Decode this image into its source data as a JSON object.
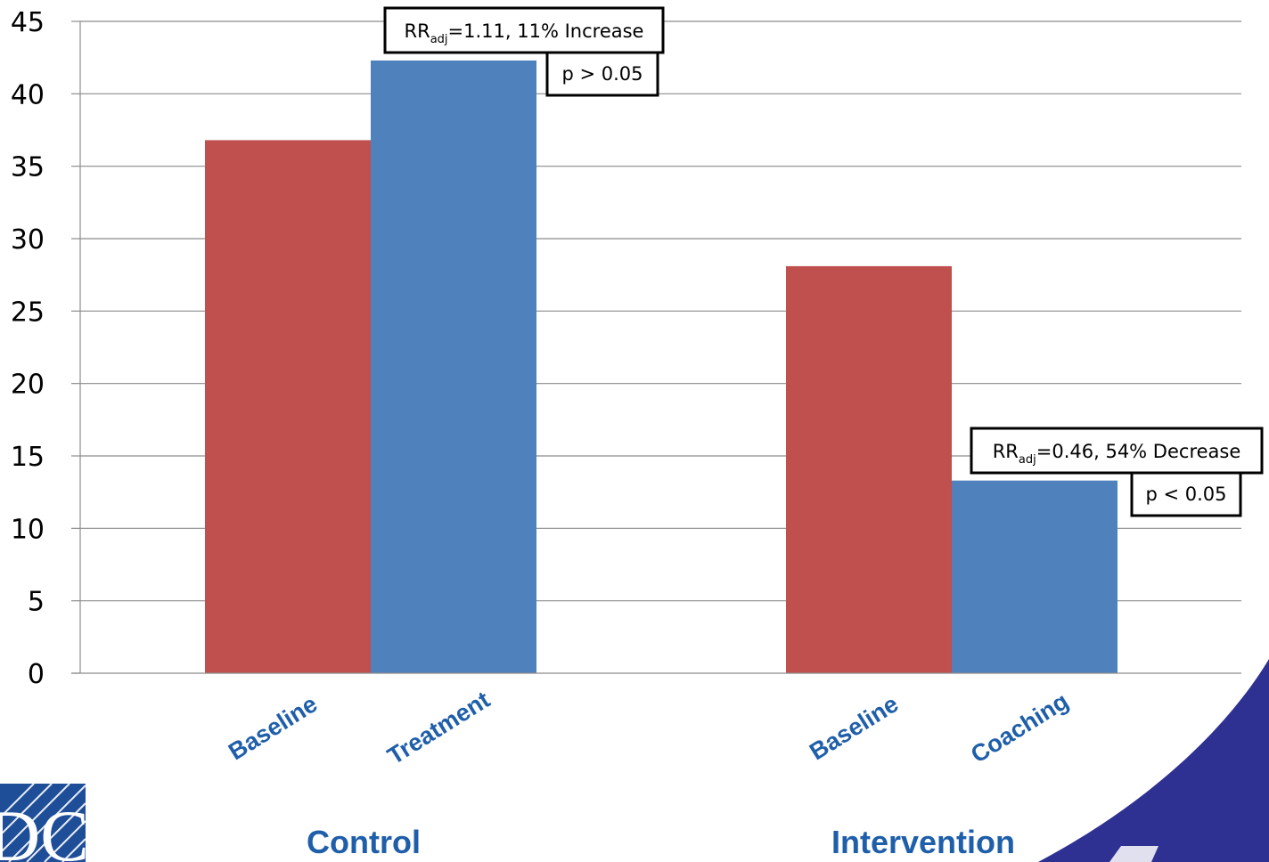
{
  "chart_data": {
    "type": "bar",
    "ylim": [
      0,
      45
    ],
    "yticks": [
      0,
      5,
      10,
      15,
      20,
      25,
      30,
      35,
      40,
      45
    ],
    "grid": true,
    "groups": [
      {
        "label": "Control",
        "bars": [
          {
            "label": "Baseline",
            "value": 36.8,
            "color": "#C0504D"
          },
          {
            "label": "Treatment",
            "value": 42.3,
            "color": "#4F81BD"
          }
        ],
        "annotation": {
          "effect": {
            "prefix": "RR",
            "sub": "adj",
            "rest": "=1.11, 11% Increase"
          },
          "pvalue": "p > 0.05"
        }
      },
      {
        "label": "Intervention",
        "bars": [
          {
            "label": "Baseline",
            "value": 28.1,
            "color": "#C0504D"
          },
          {
            "label": "Coaching",
            "value": 13.3,
            "color": "#4F81BD"
          }
        ],
        "annotation": {
          "effect": {
            "prefix": "RR",
            "sub": "adj",
            "rest": "=0.46, 54% Decrease"
          },
          "pvalue": "p < 0.05"
        }
      }
    ]
  },
  "colors": {
    "axis_label_text": "#1F5FAA",
    "grid": "#8C8C8C",
    "logo_blue": "#1F4E99",
    "corner_swoosh": "#2E3192"
  },
  "logo": {
    "name": "cdc-logo",
    "visible_text": "DC"
  }
}
